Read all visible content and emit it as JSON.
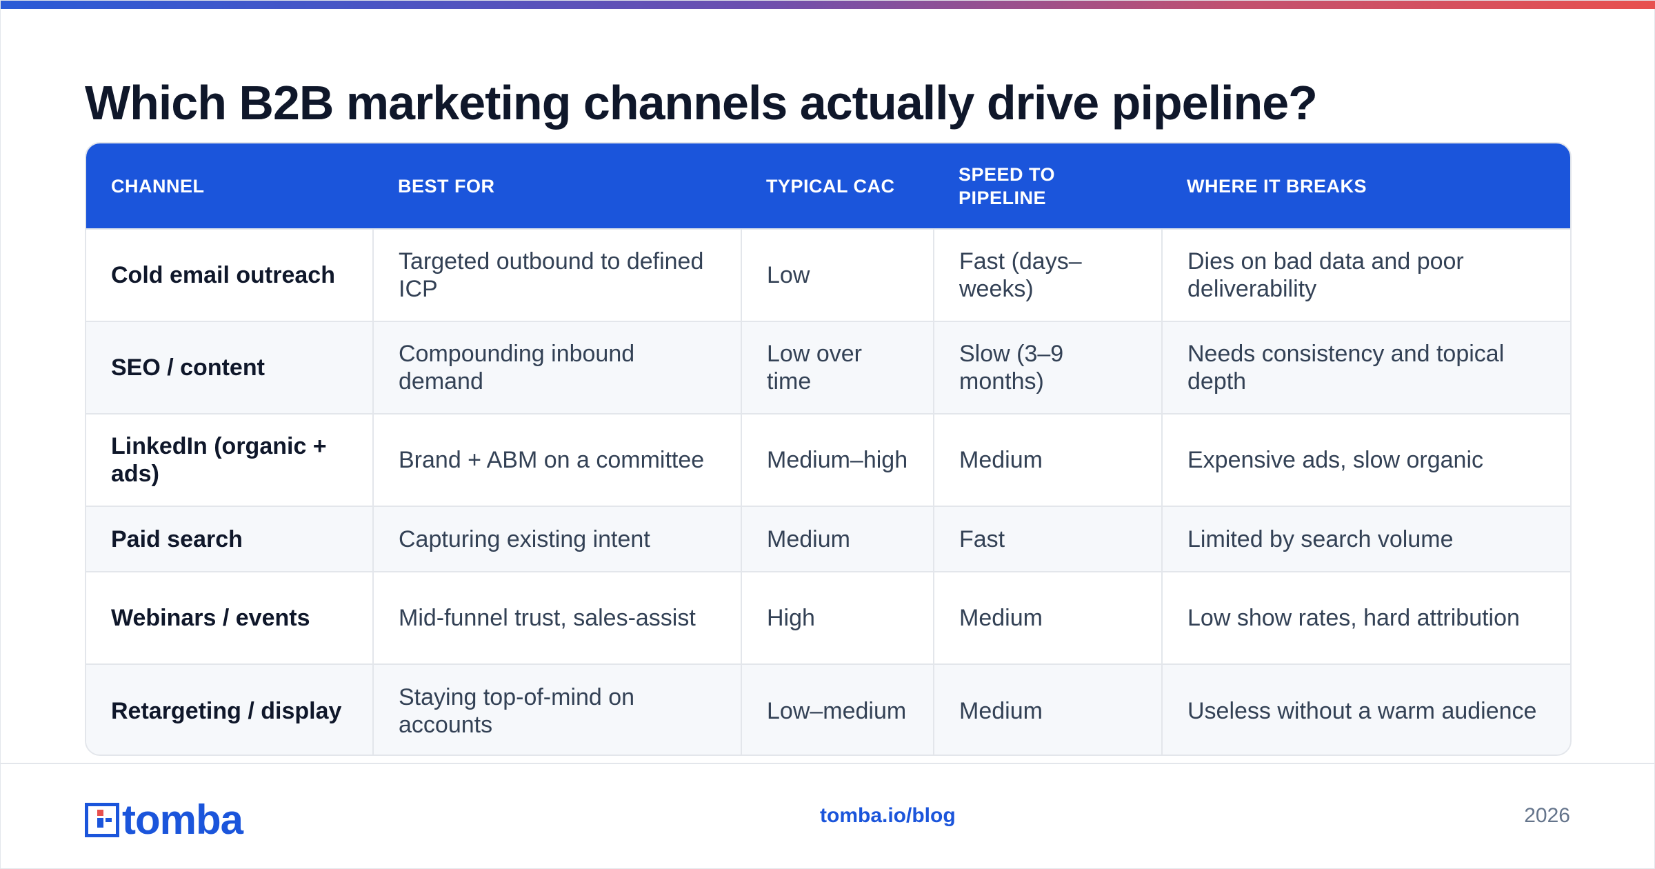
{
  "title": "Which B2B marketing channels actually drive pipeline?",
  "colors": {
    "accent": "#1b55db",
    "heading_text": "#0f172a",
    "body_text": "#334155",
    "muted_text": "#64748b",
    "border": "#e3e6eb",
    "zebra_row": "#f6f8fb",
    "gradient_start": "#2a5bd7",
    "gradient_end": "#e8504e"
  },
  "table": {
    "headers": [
      "CHANNEL",
      "BEST FOR",
      "TYPICAL CAC",
      "SPEED TO PIPELINE",
      "WHERE IT BREAKS"
    ],
    "rows": [
      [
        "Cold email outreach",
        "Targeted outbound to defined ICP",
        "Low",
        "Fast (days–weeks)",
        "Dies on bad data and poor deliverability"
      ],
      [
        "SEO / content",
        "Compounding inbound demand",
        "Low over time",
        "Slow (3–9 months)",
        "Needs consistency and topical depth"
      ],
      [
        "LinkedIn (organic + ads)",
        "Brand + ABM on a committee",
        "Medium–high",
        "Medium",
        "Expensive ads, slow organic"
      ],
      [
        "Paid search",
        "Capturing existing intent",
        "Medium",
        "Fast",
        "Limited by search volume"
      ],
      [
        "Webinars / events",
        "Mid-funnel trust, sales-assist",
        "High",
        "Medium",
        "Low show rates, hard attribution"
      ],
      [
        "Retargeting / display",
        "Staying top-of-mind on accounts",
        "Low–medium",
        "Medium",
        "Useless without a warm audience"
      ]
    ]
  },
  "footer": {
    "logo_text": "tomba",
    "logo_icon": "tomba-logo-icon",
    "url": "tomba.io/blog",
    "year": "2026"
  }
}
